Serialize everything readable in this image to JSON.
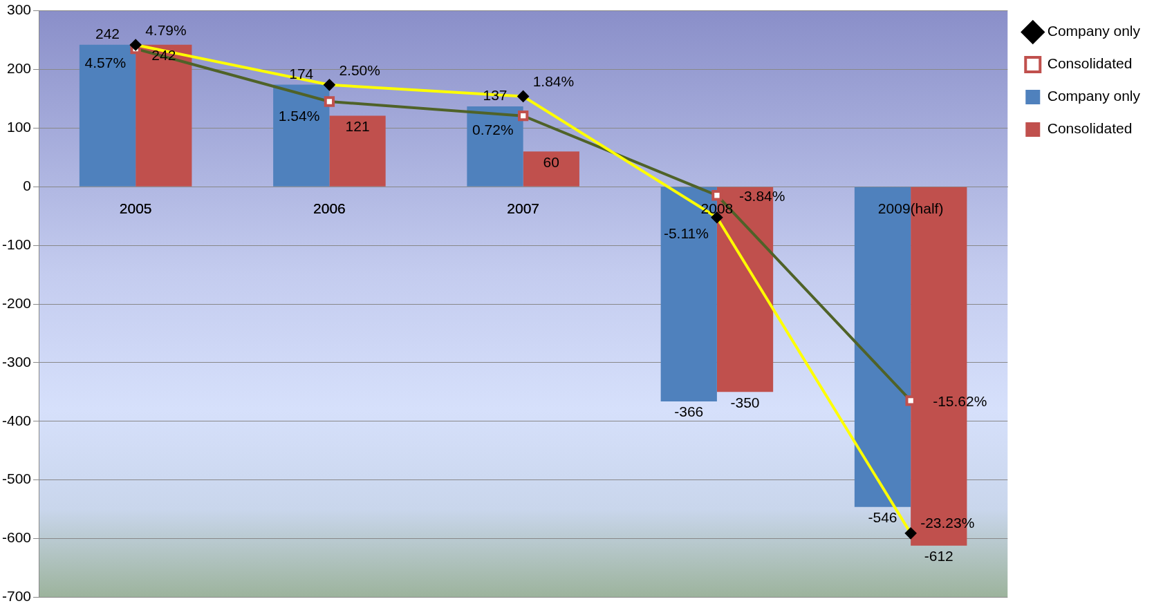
{
  "chart_data": {
    "type": "bar",
    "categories": [
      "2005",
      "2006",
      "2007",
      "2008",
      "2009(half)"
    ],
    "series": [
      {
        "name": "Company only",
        "type": "line",
        "axis": "y2",
        "color": "#ffff00",
        "marker": "diamond",
        "values": [
          4.79,
          2.5,
          1.84,
          -5.11,
          -23.23
        ],
        "value_labels": [
          "4.79%",
          "2.50%",
          "1.84%",
          "-5.11%",
          "-23.23%"
        ]
      },
      {
        "name": "Consolidated",
        "type": "line",
        "axis": "y2",
        "color": "#4f6228",
        "marker": "square",
        "values": [
          4.57,
          1.54,
          0.72,
          -3.84,
          -15.62
        ],
        "value_labels": [
          "4.57%",
          "1.54%",
          "0.72%",
          "-3.84%",
          "-15.62%"
        ]
      },
      {
        "name": "Company only",
        "color": "#4f81bd",
        "values": [
          242,
          174,
          137,
          -366,
          -546
        ],
        "value_labels": [
          "242",
          "174",
          "137",
          "-366",
          "-546"
        ]
      },
      {
        "name": "Consolidated",
        "color": "#c0504d",
        "values": [
          242,
          121,
          60,
          -350,
          -612
        ],
        "value_labels": [
          "242",
          "121",
          "60",
          "-350",
          "-612"
        ]
      }
    ],
    "ylim": [
      -700,
      300
    ],
    "yticks": [
      -700,
      -600,
      -500,
      -400,
      -300,
      -200,
      -100,
      0,
      100,
      200,
      300
    ],
    "y2lim": [
      -26.9,
      6.75
    ],
    "grid": "y",
    "legend": "right"
  }
}
